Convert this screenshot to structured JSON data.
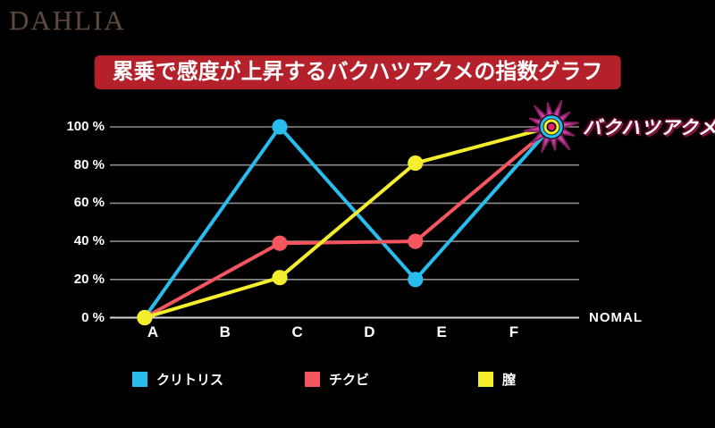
{
  "logo": {
    "text": "DAHLIA",
    "color": "#5b493f"
  },
  "banner": {
    "text": "累乗で感度が上昇するバクハツアクメの指数グラフ",
    "bg": "#b5212a",
    "text_color": "#ffffff"
  },
  "chart_data": {
    "type": "line",
    "title": "累乗で感度が上昇するバクハツアクメの指数グラフ",
    "x_tick_labels": [
      "A",
      "B",
      "C",
      "D",
      "E",
      "F"
    ],
    "x_axis_end_label": "NOMAL",
    "y_tick_labels": [
      "0 %",
      "20 %",
      "40 %",
      "60 %",
      "80 %",
      "100 %"
    ],
    "ylim": [
      0,
      100
    ],
    "grid": "horizontal",
    "grid_color": "#8c8c8c",
    "axis_color": "#d7d7d7",
    "x_points_rel": [
      0.074,
      0.362,
      0.651,
      0.941
    ],
    "series": [
      {
        "name": "クリトリス",
        "color": "#29bdee",
        "values": [
          0,
          100,
          20,
          100
        ]
      },
      {
        "name": "チクビ",
        "color": "#f4555f",
        "values": [
          0,
          39,
          40,
          100
        ]
      },
      {
        "name": "膣",
        "color": "#f4ee2d",
        "values": [
          0,
          21,
          81,
          100
        ]
      }
    ],
    "annotation": {
      "label": "バクハツアクメ",
      "at_value": 100,
      "marker": "starburst",
      "marker_color": "#cd3fac",
      "marker_rings": [
        "#29bdee",
        "#f4ee2d"
      ],
      "marker_core_color": "#e7246d"
    },
    "legend_position": "bottom"
  }
}
